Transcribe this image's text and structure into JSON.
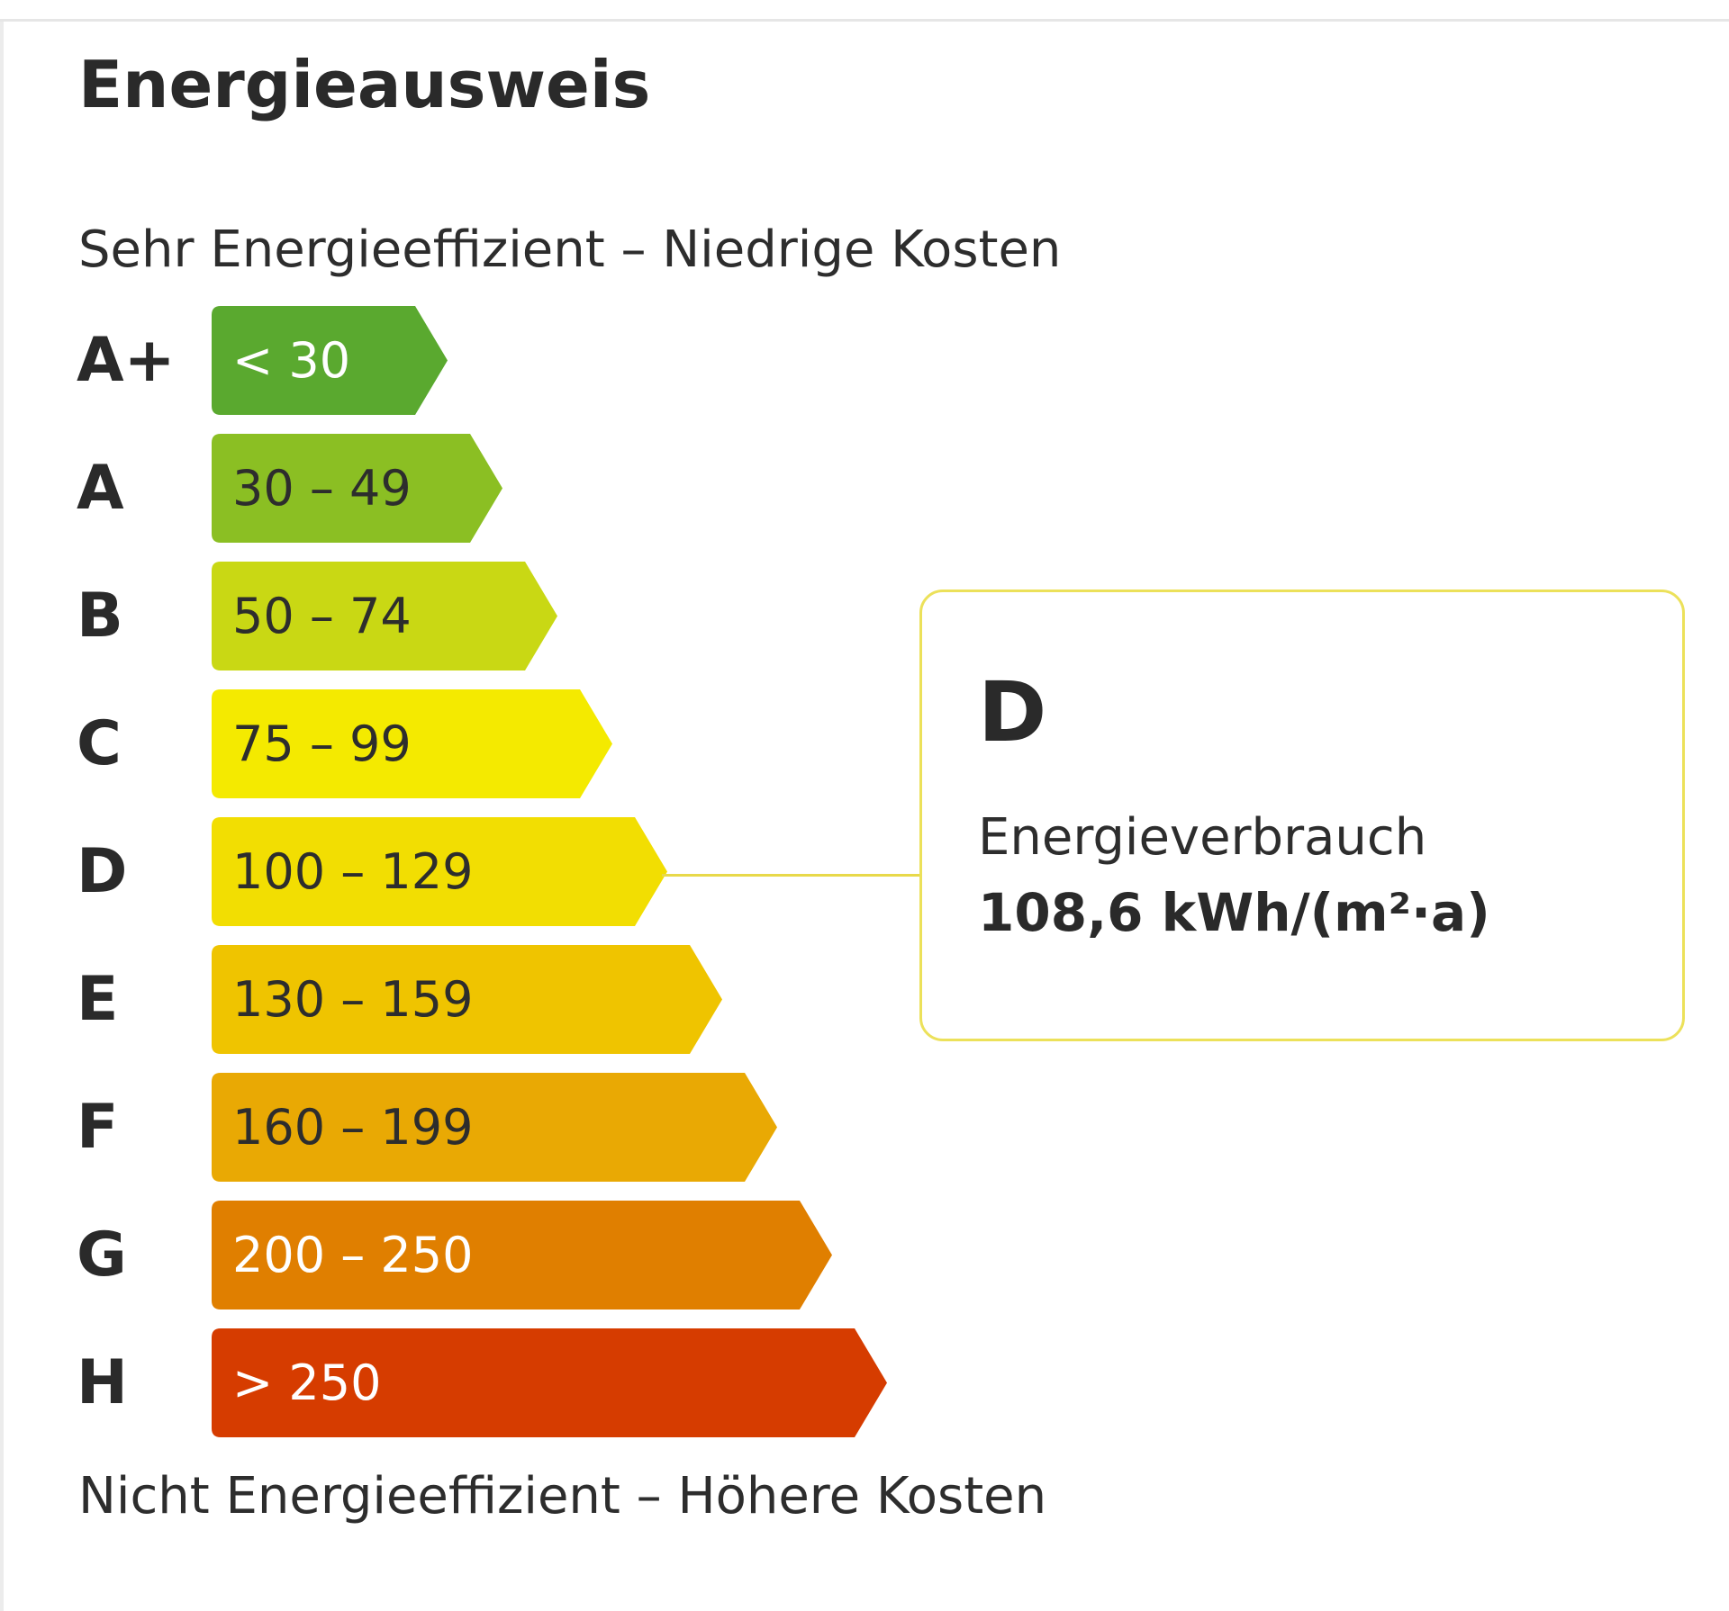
{
  "title": "Energieausweis",
  "scale": {
    "top_caption": "Sehr Energieeffizient – Niedrige Kosten",
    "bottom_caption": "Nicht Energieeffizient – Höhere Kosten",
    "classes": [
      {
        "grade": "A+",
        "range": "< 30",
        "color": "#5aa92f",
        "text_color": "#ffffff"
      },
      {
        "grade": "A",
        "range": "30 – 49",
        "color": "#8bbf23",
        "text_color": "#2d2d2d"
      },
      {
        "grade": "B",
        "range": "50 – 74",
        "color": "#c9d814",
        "text_color": "#2d2d2d"
      },
      {
        "grade": "C",
        "range": "75 – 99",
        "color": "#f4ea00",
        "text_color": "#2d2d2d"
      },
      {
        "grade": "D",
        "range": "100 – 129",
        "color": "#f2de02",
        "text_color": "#2d2d2d"
      },
      {
        "grade": "E",
        "range": "130 – 159",
        "color": "#efc400",
        "text_color": "#2d2d2d"
      },
      {
        "grade": "F",
        "range": "160 – 199",
        "color": "#e9a904",
        "text_color": "#2d2d2d"
      },
      {
        "grade": "G",
        "range": "200 – 250",
        "color": "#e07f00",
        "text_color": "#ffffff"
      },
      {
        "grade": "H",
        "range": "> 250",
        "color": "#d63c00",
        "text_color": "#ffffff"
      }
    ]
  },
  "result": {
    "grade": "D",
    "label": "Energieverbrauch",
    "value": "108,6 kWh/(m²·a)",
    "border_color": "#ece15a"
  }
}
